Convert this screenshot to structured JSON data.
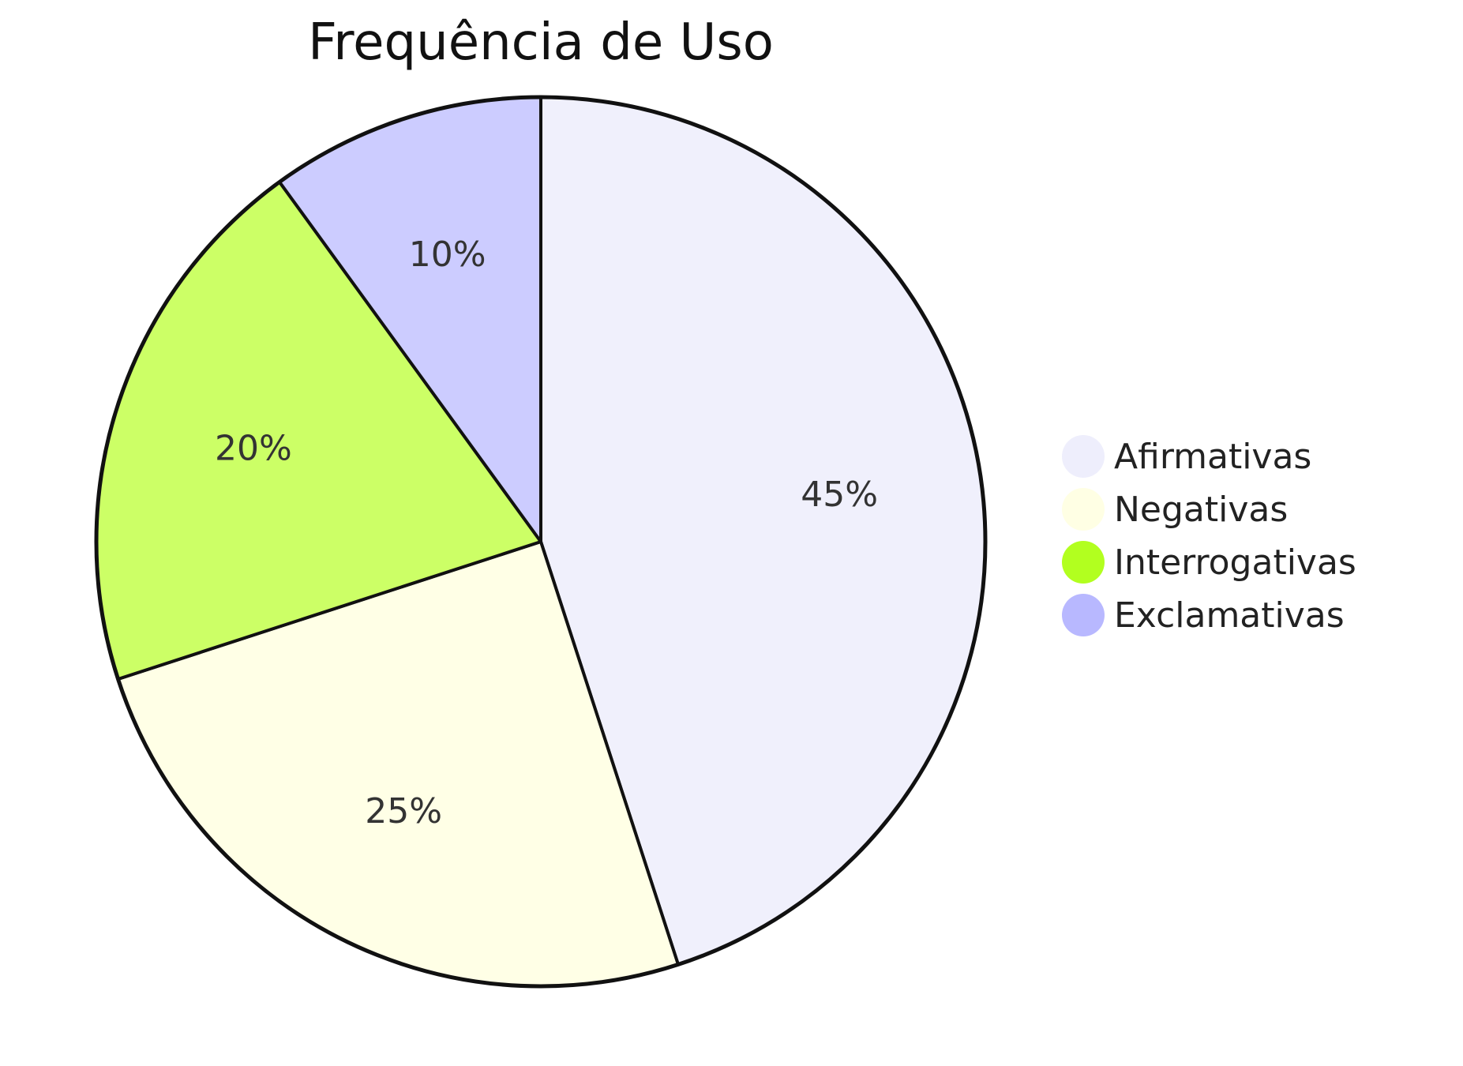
{
  "chart_data": {
    "type": "pie",
    "title": "Frequência de Uso",
    "categories": [
      "Afirmativas",
      "Negativas",
      "Interrogativas",
      "Exclamativas"
    ],
    "values": [
      45,
      25,
      20,
      10
    ],
    "labels": [
      "45%",
      "25%",
      "20%",
      "10%"
    ],
    "colors": [
      "#f0f0fc",
      "#ffffe6",
      "#ccff66",
      "#ccccff"
    ],
    "legend_marker_colors": [
      "#eeeefc",
      "#ffffe4",
      "#b2ff1f",
      "#b8b8ff"
    ],
    "legend": {
      "position": "right",
      "entries": [
        "Afirmativas",
        "Negativas",
        "Interrogativas",
        "Exclamativas"
      ]
    },
    "start_angle": "12 o'clock",
    "direction": "clockwise"
  }
}
